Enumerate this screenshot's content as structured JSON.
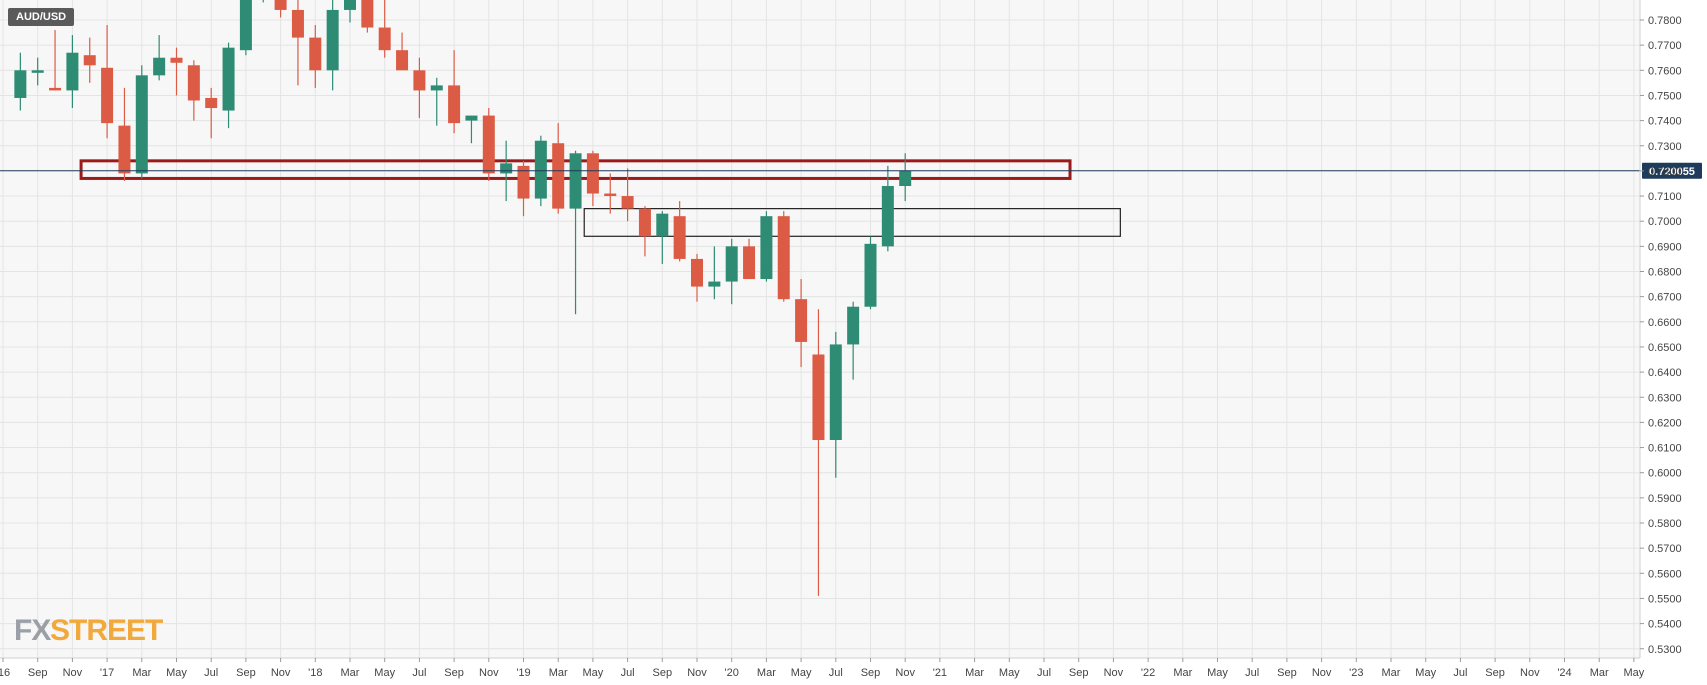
{
  "chart_data": {
    "type": "candlestick",
    "symbol": "AUD/USD",
    "timeframe": "monthly",
    "current_price": 0.720055,
    "current_price_label": "0.720055",
    "ylim": [
      0.525,
      0.785
    ],
    "y_ticks": [
      0.53,
      0.54,
      0.55,
      0.56,
      0.57,
      0.58,
      0.59,
      0.6,
      0.61,
      0.62,
      0.63,
      0.64,
      0.65,
      0.66,
      0.67,
      0.68,
      0.69,
      0.7,
      0.71,
      0.72,
      0.73,
      0.74,
      0.75,
      0.76,
      0.77,
      0.78
    ],
    "y_tick_labels": [
      "0.5300",
      "0.5400",
      "0.5500",
      "0.5600",
      "0.5700",
      "0.5800",
      "0.5900",
      "0.6000",
      "0.6100",
      "0.6200",
      "0.6300",
      "0.6400",
      "0.6500",
      "0.6600",
      "0.6700",
      "0.6800",
      "0.6900",
      "0.7000",
      "0.7100",
      "0.7200",
      "0.7300",
      "0.7400",
      "0.7500",
      "0.7600",
      "0.7700",
      "0.7800"
    ],
    "x_labels": [
      "'16",
      "Sep",
      "Nov",
      "'17",
      "Mar",
      "May",
      "Jul",
      "Sep",
      "Nov",
      "'18",
      "Mar",
      "May",
      "Jul",
      "Sep",
      "Nov",
      "'19",
      "Mar",
      "May",
      "Jul",
      "Sep",
      "Nov",
      "'20",
      "Mar",
      "May",
      "Jul",
      "Sep",
      "Nov",
      "'21",
      "Mar",
      "May",
      "Jul",
      "Sep",
      "Nov",
      "'22",
      "Mar",
      "May",
      "Jul",
      "Sep",
      "Nov",
      "'23",
      "Mar",
      "May",
      "Jul",
      "Sep",
      "Nov",
      "'24",
      "Mar",
      "May"
    ],
    "candles": [
      {
        "o": 0.749,
        "h": 0.767,
        "l": 0.744,
        "c": 0.76
      },
      {
        "o": 0.759,
        "h": 0.765,
        "l": 0.754,
        "c": 0.76
      },
      {
        "o": 0.753,
        "h": 0.776,
        "l": 0.752,
        "c": 0.752
      },
      {
        "o": 0.752,
        "h": 0.774,
        "l": 0.745,
        "c": 0.767
      },
      {
        "o": 0.766,
        "h": 0.773,
        "l": 0.755,
        "c": 0.762
      },
      {
        "o": 0.761,
        "h": 0.778,
        "l": 0.733,
        "c": 0.739
      },
      {
        "o": 0.738,
        "h": 0.753,
        "l": 0.716,
        "c": 0.719
      },
      {
        "o": 0.719,
        "h": 0.762,
        "l": 0.717,
        "c": 0.758
      },
      {
        "o": 0.758,
        "h": 0.774,
        "l": 0.756,
        "c": 0.765
      },
      {
        "o": 0.765,
        "h": 0.769,
        "l": 0.75,
        "c": 0.763
      },
      {
        "o": 0.762,
        "h": 0.764,
        "l": 0.74,
        "c": 0.748
      },
      {
        "o": 0.749,
        "h": 0.753,
        "l": 0.733,
        "c": 0.745
      },
      {
        "o": 0.744,
        "h": 0.771,
        "l": 0.737,
        "c": 0.769
      },
      {
        "o": 0.768,
        "h": 0.8,
        "l": 0.766,
        "c": 0.795
      },
      {
        "o": 0.795,
        "h": 0.81,
        "l": 0.787,
        "c": 0.802
      },
      {
        "o": 0.802,
        "h": 0.814,
        "l": 0.781,
        "c": 0.784
      },
      {
        "o": 0.784,
        "h": 0.789,
        "l": 0.754,
        "c": 0.773
      },
      {
        "o": 0.773,
        "h": 0.778,
        "l": 0.753,
        "c": 0.76
      },
      {
        "o": 0.76,
        "h": 0.791,
        "l": 0.752,
        "c": 0.784
      },
      {
        "o": 0.784,
        "h": 0.813,
        "l": 0.779,
        "c": 0.805
      },
      {
        "o": 0.805,
        "h": 0.813,
        "l": 0.775,
        "c": 0.777
      },
      {
        "o": 0.777,
        "h": 0.789,
        "l": 0.765,
        "c": 0.768
      },
      {
        "o": 0.768,
        "h": 0.775,
        "l": 0.761,
        "c": 0.76
      },
      {
        "o": 0.76,
        "h": 0.765,
        "l": 0.741,
        "c": 0.752
      },
      {
        "o": 0.752,
        "h": 0.757,
        "l": 0.738,
        "c": 0.754
      },
      {
        "o": 0.754,
        "h": 0.768,
        "l": 0.735,
        "c": 0.739
      },
      {
        "o": 0.74,
        "h": 0.742,
        "l": 0.731,
        "c": 0.742
      },
      {
        "o": 0.742,
        "h": 0.745,
        "l": 0.716,
        "c": 0.719
      },
      {
        "o": 0.719,
        "h": 0.732,
        "l": 0.708,
        "c": 0.723
      },
      {
        "o": 0.722,
        "h": 0.724,
        "l": 0.702,
        "c": 0.709
      },
      {
        "o": 0.709,
        "h": 0.734,
        "l": 0.706,
        "c": 0.732
      },
      {
        "o": 0.731,
        "h": 0.739,
        "l": 0.703,
        "c": 0.705
      },
      {
        "o": 0.705,
        "h": 0.728,
        "l": 0.663,
        "c": 0.727
      },
      {
        "o": 0.727,
        "h": 0.728,
        "l": 0.706,
        "c": 0.711
      },
      {
        "o": 0.711,
        "h": 0.719,
        "l": 0.703,
        "c": 0.71
      },
      {
        "o": 0.71,
        "h": 0.721,
        "l": 0.7,
        "c": 0.705
      },
      {
        "o": 0.705,
        "h": 0.706,
        "l": 0.686,
        "c": 0.694
      },
      {
        "o": 0.694,
        "h": 0.704,
        "l": 0.683,
        "c": 0.703
      },
      {
        "o": 0.702,
        "h": 0.708,
        "l": 0.684,
        "c": 0.685
      },
      {
        "o": 0.685,
        "h": 0.687,
        "l": 0.668,
        "c": 0.674
      },
      {
        "o": 0.674,
        "h": 0.69,
        "l": 0.669,
        "c": 0.676
      },
      {
        "o": 0.676,
        "h": 0.693,
        "l": 0.667,
        "c": 0.69
      },
      {
        "o": 0.69,
        "h": 0.693,
        "l": 0.677,
        "c": 0.677
      },
      {
        "o": 0.677,
        "h": 0.704,
        "l": 0.676,
        "c": 0.702
      },
      {
        "o": 0.702,
        "h": 0.704,
        "l": 0.668,
        "c": 0.669
      },
      {
        "o": 0.669,
        "h": 0.677,
        "l": 0.642,
        "c": 0.652
      },
      {
        "o": 0.647,
        "h": 0.665,
        "l": 0.551,
        "c": 0.613
      },
      {
        "o": 0.613,
        "h": 0.656,
        "l": 0.598,
        "c": 0.651
      },
      {
        "o": 0.651,
        "h": 0.668,
        "l": 0.637,
        "c": 0.666
      },
      {
        "o": 0.666,
        "h": 0.694,
        "l": 0.665,
        "c": 0.691
      },
      {
        "o": 0.69,
        "h": 0.722,
        "l": 0.688,
        "c": 0.714
      },
      {
        "o": 0.714,
        "h": 0.727,
        "l": 0.708,
        "c": 0.72
      }
    ],
    "zones": [
      {
        "name": "resistance-zone",
        "from_index": 3.5,
        "to_index": 60.5,
        "top": 0.724,
        "bottom": 0.717,
        "color": "#9b1b1b"
      },
      {
        "name": "support-zone",
        "from_index": 32.5,
        "to_index": 63.4,
        "top": 0.705,
        "bottom": 0.694,
        "color": "#222222"
      }
    ],
    "up_color": "#2e8b74",
    "down_color": "#dc5b45",
    "price_line_color": "#1f3b5c",
    "grid": true
  },
  "watermark": {
    "part1": "FX",
    "part2": "STREET"
  }
}
